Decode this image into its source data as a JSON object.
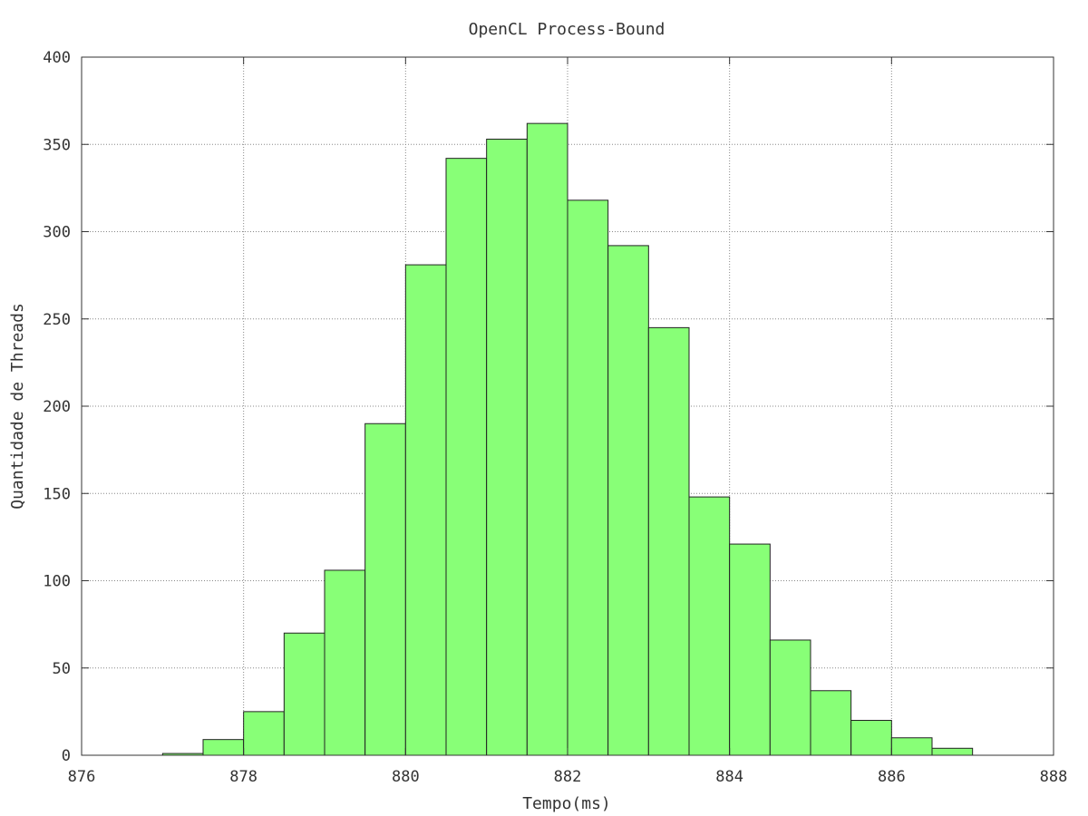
{
  "chart_data": {
    "type": "bar",
    "title": "OpenCL Process-Bound",
    "xlabel": "Tempo(ms)",
    "ylabel": "Quantidade de Threads",
    "xlim": [
      876,
      888
    ],
    "ylim": [
      0,
      400
    ],
    "xticks": [
      876,
      878,
      880,
      882,
      884,
      886,
      888
    ],
    "yticks": [
      0,
      50,
      100,
      150,
      200,
      250,
      300,
      350,
      400
    ],
    "grid": true,
    "bar_color": "#88ff77",
    "bar_edge_color": "#222222",
    "bins": [
      {
        "x0": 877.0,
        "x1": 877.5,
        "value": 1
      },
      {
        "x0": 877.5,
        "x1": 878.0,
        "value": 9
      },
      {
        "x0": 878.0,
        "x1": 878.5,
        "value": 25
      },
      {
        "x0": 878.5,
        "x1": 879.0,
        "value": 70
      },
      {
        "x0": 879.0,
        "x1": 879.5,
        "value": 106
      },
      {
        "x0": 879.5,
        "x1": 880.0,
        "value": 190
      },
      {
        "x0": 880.0,
        "x1": 880.5,
        "value": 281
      },
      {
        "x0": 880.5,
        "x1": 881.0,
        "value": 342
      },
      {
        "x0": 881.0,
        "x1": 881.5,
        "value": 353
      },
      {
        "x0": 881.5,
        "x1": 882.0,
        "value": 362
      },
      {
        "x0": 882.0,
        "x1": 882.5,
        "value": 318
      },
      {
        "x0": 882.5,
        "x1": 883.0,
        "value": 292
      },
      {
        "x0": 883.0,
        "x1": 883.5,
        "value": 245
      },
      {
        "x0": 883.5,
        "x1": 884.0,
        "value": 148
      },
      {
        "x0": 884.0,
        "x1": 884.5,
        "value": 121
      },
      {
        "x0": 884.5,
        "x1": 885.0,
        "value": 66
      },
      {
        "x0": 885.0,
        "x1": 885.5,
        "value": 37
      },
      {
        "x0": 885.5,
        "x1": 886.0,
        "value": 20
      },
      {
        "x0": 886.0,
        "x1": 886.5,
        "value": 10
      },
      {
        "x0": 886.5,
        "x1": 887.0,
        "value": 4
      }
    ]
  }
}
